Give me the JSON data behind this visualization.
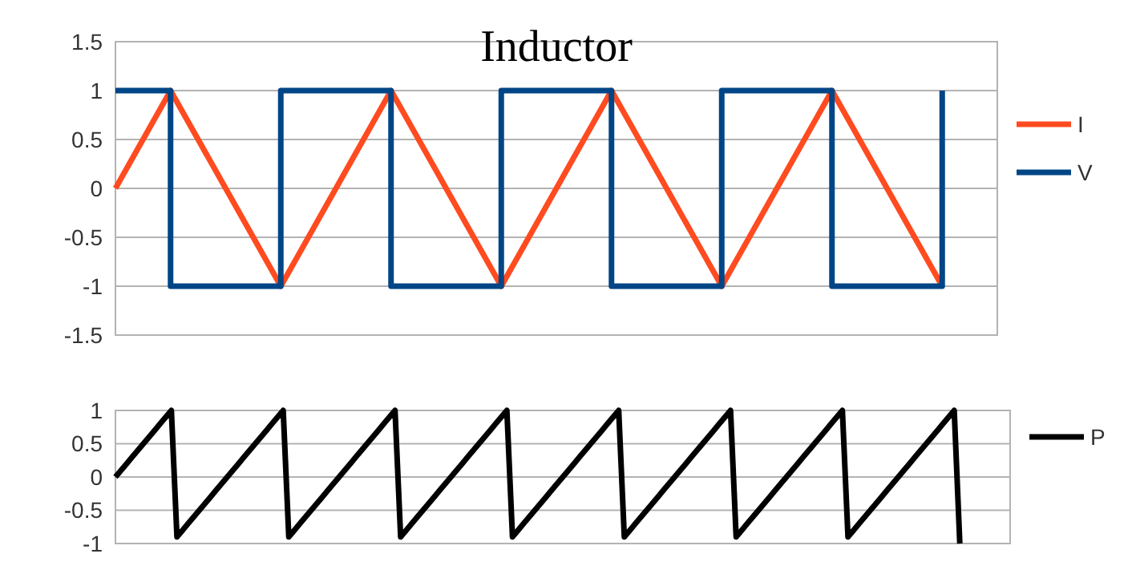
{
  "chart_data": [
    {
      "type": "line",
      "title": "Inductor",
      "categories": [
        null,
        null,
        null,
        null,
        null,
        null,
        null,
        null,
        null,
        null,
        null,
        null,
        null,
        null,
        null,
        null
      ],
      "ylim": [
        -1.5,
        1.5
      ],
      "yticks": [
        1.5,
        1,
        0.5,
        0,
        -0.5,
        -1,
        -1.5
      ],
      "grid": "y",
      "legend": "right",
      "series": [
        {
          "name": "I",
          "color": "#ff4b1f",
          "values": [
            0,
            1,
            0,
            -1,
            0,
            1,
            0,
            -1,
            0,
            1,
            0,
            -1,
            0,
            1,
            0,
            -1
          ]
        },
        {
          "name": "V",
          "type": "step",
          "color": "#004586",
          "values": [
            1,
            -1,
            -1,
            1,
            1,
            -1,
            -1,
            1,
            1,
            -1,
            -1,
            1,
            1,
            -1,
            -1,
            1
          ]
        }
      ]
    },
    {
      "type": "line",
      "categories": [
        null,
        null,
        null,
        null,
        null,
        null,
        null,
        null,
        null,
        null,
        null,
        null,
        null,
        null,
        null,
        null,
        null,
        null,
        null,
        null,
        null,
        null,
        null,
        null,
        null,
        null,
        null,
        null,
        null,
        null,
        null,
        null,
        null,
        null,
        null,
        null,
        null,
        null,
        null,
        null,
        null,
        null,
        null,
        null,
        null,
        null,
        null,
        null,
        null,
        null,
        null,
        null,
        null,
        null,
        null,
        null,
        null,
        null,
        null,
        null,
        null,
        null,
        null,
        null,
        null,
        null,
        null,
        null,
        null,
        null,
        null,
        null,
        null,
        null,
        null,
        null,
        null,
        null,
        null,
        null,
        null,
        null,
        null,
        null,
        null,
        null,
        null,
        null,
        null,
        null,
        null,
        null,
        null,
        null,
        null,
        null,
        null,
        null,
        null,
        null,
        null,
        null,
        null,
        null,
        null,
        null,
        null,
        null,
        null,
        null,
        null,
        null,
        null,
        null,
        null,
        null,
        null,
        null,
        null,
        null,
        null,
        null,
        null,
        null,
        null,
        null,
        null,
        null,
        null,
        null,
        null,
        null,
        null,
        null,
        null,
        null,
        null,
        null,
        null,
        null,
        null,
        null,
        null,
        null,
        null,
        null,
        null,
        null,
        null,
        null,
        null,
        null,
        null,
        null,
        null,
        null,
        null,
        null,
        null,
        null
      ],
      "ylim": [
        -1,
        1
      ],
      "yticks": [
        1,
        0.5,
        0,
        -0.5,
        -1
      ],
      "grid": "y",
      "legend": "right",
      "series": [
        {
          "name": "P",
          "color": "#000000",
          "values": [
            0,
            0.1,
            0.2,
            0.3,
            0.4,
            0.5,
            0.6,
            0.7,
            0.8,
            0.9,
            1,
            -0.9,
            -0.8,
            -0.7,
            -0.6,
            -0.5,
            -0.4,
            -0.3,
            -0.2,
            -0.1,
            0,
            0.1,
            0.2,
            0.3,
            0.4,
            0.5,
            0.6,
            0.7,
            0.8,
            0.9,
            1,
            -0.9,
            -0.8,
            -0.7,
            -0.6,
            -0.5,
            -0.4,
            -0.3,
            -0.2,
            -0.1,
            0,
            0.1,
            0.2,
            0.3,
            0.4,
            0.5,
            0.6,
            0.7,
            0.8,
            0.9,
            1,
            -0.9,
            -0.8,
            -0.7,
            -0.6,
            -0.5,
            -0.4,
            -0.3,
            -0.2,
            -0.1,
            0,
            0.1,
            0.2,
            0.3,
            0.4,
            0.5,
            0.6,
            0.7,
            0.8,
            0.9,
            1,
            -0.9,
            -0.8,
            -0.7,
            -0.6,
            -0.5,
            -0.4,
            -0.3,
            -0.2,
            -0.1,
            0,
            0.1,
            0.2,
            0.3,
            0.4,
            0.5,
            0.6,
            0.7,
            0.8,
            0.9,
            1,
            -0.9,
            -0.8,
            -0.7,
            -0.6,
            -0.5,
            -0.4,
            -0.3,
            -0.2,
            -0.1,
            0,
            0.1,
            0.2,
            0.3,
            0.4,
            0.5,
            0.6,
            0.7,
            0.8,
            0.9,
            1,
            -0.9,
            -0.8,
            -0.7,
            -0.6,
            -0.5,
            -0.4,
            -0.3,
            -0.2,
            -0.1,
            0,
            0.1,
            0.2,
            0.3,
            0.4,
            0.5,
            0.6,
            0.7,
            0.8,
            0.9,
            1,
            -0.9,
            -0.8,
            -0.7,
            -0.6,
            -0.5,
            -0.4,
            -0.3,
            -0.2,
            -0.1,
            0,
            0.1,
            0.2,
            0.3,
            0.4,
            0.5,
            0.6,
            0.7,
            0.8,
            0.9,
            1,
            -1,
            null,
            null,
            null,
            null,
            null,
            null,
            null,
            null
          ]
        }
      ]
    }
  ]
}
